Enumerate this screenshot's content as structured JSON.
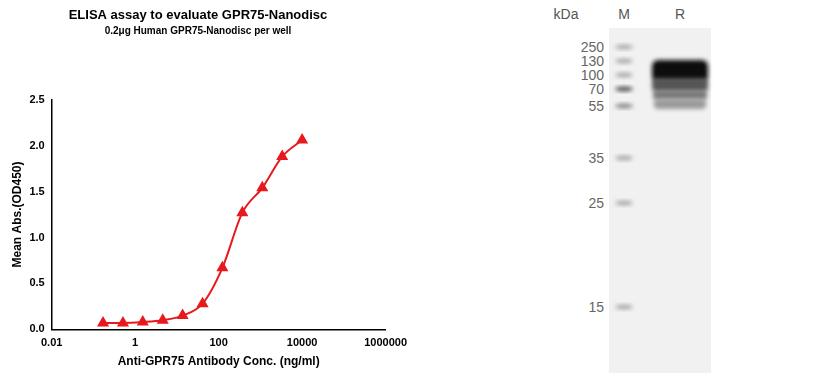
{
  "chart_data": {
    "type": "scatter",
    "title": "ELISA assay to evaluate GPR75-Nanodisc",
    "subtitle": "0.2μg Human GPR75-Nanodisc per well",
    "x_label": "Anti-GPR75 Antibody Conc. (ng/ml)",
    "y_label": "Mean Abs.(OD450)",
    "x": [
      0.17,
      0.51,
      1.52,
      4.57,
      13.7,
      41.2,
      123,
      370,
      1111,
      3333,
      10000
    ],
    "values": [
      0.07,
      0.07,
      0.08,
      0.1,
      0.15,
      0.28,
      0.67,
      1.27,
      1.54,
      1.88,
      2.06
    ],
    "color": "#e8191d",
    "marker": "triangle",
    "line_style": "solid",
    "log": "x",
    "xlim": [
      0.01,
      1000000
    ],
    "xticks": [
      0.01,
      1,
      100,
      10000,
      1000000
    ],
    "ylim": [
      0,
      2.5
    ],
    "yticks": [
      {
        "value": 0,
        "label": "0.0"
      },
      0.5,
      {
        "value": 1,
        "label": "1.0"
      },
      1.5,
      {
        "value": 2,
        "label": "2.0"
      },
      2.5
    ],
    "grid": false
  },
  "gel": {
    "unit_label": "kDa",
    "lanes": [
      "M",
      "R"
    ],
    "markers": [
      250,
      130,
      100,
      70,
      55,
      35,
      25,
      15
    ]
  }
}
